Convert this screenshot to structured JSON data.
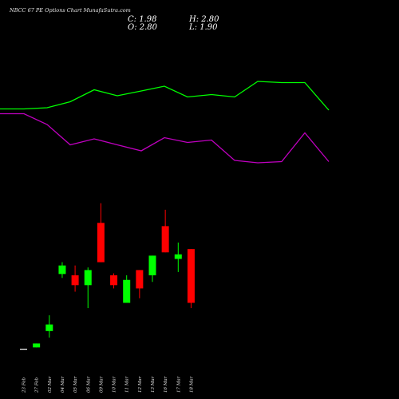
{
  "header": {
    "title": "NBCC 67 PE Options Chart MunafaSutra.com",
    "c_label": "C: 1.98",
    "o_label": "O: 2.80",
    "h_label": "H: 2.80",
    "l_label": "L: 1.90"
  },
  "colors": {
    "up": "#00ff00",
    "down": "#ff0000",
    "line_green": "#00ff00",
    "line_magenta": "#c000c0",
    "background": "#000000"
  },
  "chart_data": [
    {
      "type": "line",
      "title": "",
      "series": [
        {
          "color": "#00ff00",
          "values": [
            6.9,
            6.9,
            7.0,
            7.5,
            8.5,
            8.0,
            8.4,
            8.8,
            7.9,
            8.1,
            7.9,
            9.2,
            9.1,
            9.1,
            6.8
          ]
        },
        {
          "color": "#c000c0",
          "values": [
            6.5,
            6.5,
            5.6,
            3.9,
            4.4,
            3.9,
            3.4,
            4.5,
            4.1,
            4.3,
            2.6,
            2.4,
            2.5,
            4.9,
            2.5
          ]
        }
      ],
      "ylim": [
        0,
        12
      ]
    },
    {
      "type": "candlestick",
      "title": "",
      "categories": [
        "23 Feb",
        "27 Feb",
        "02 Mar",
        "04 Mar",
        "05 Mar",
        "06 Mar",
        "09 Mar",
        "10 Mar",
        "11 Mar",
        "12 Mar",
        "13 Mar",
        "16 Mar",
        "17 Mar",
        "18 Mar"
      ],
      "candles": [
        {
          "open": 1.28,
          "high": 1.28,
          "low": 1.28,
          "close": 1.28
        },
        {
          "open": 1.3,
          "high": 1.36,
          "low": 1.3,
          "close": 1.36
        },
        {
          "open": 1.55,
          "high": 1.79,
          "low": 1.45,
          "close": 1.65
        },
        {
          "open": 2.42,
          "high": 2.6,
          "low": 2.36,
          "close": 2.55
        },
        {
          "open": 2.4,
          "high": 2.55,
          "low": 2.15,
          "close": 2.25
        },
        {
          "open": 2.25,
          "high": 2.52,
          "low": 1.9,
          "close": 2.48
        },
        {
          "open": 3.2,
          "high": 3.5,
          "low": 2.6,
          "close": 2.6
        },
        {
          "open": 2.4,
          "high": 2.43,
          "low": 2.2,
          "close": 2.25
        },
        {
          "open": 1.98,
          "high": 2.4,
          "low": 1.98,
          "close": 2.33
        },
        {
          "open": 2.48,
          "high": 2.48,
          "low": 2.05,
          "close": 2.2
        },
        {
          "open": 2.4,
          "high": 2.7,
          "low": 2.3,
          "close": 2.7
        },
        {
          "open": 3.15,
          "high": 3.4,
          "low": 2.75,
          "close": 2.75
        },
        {
          "open": 2.65,
          "high": 2.9,
          "low": 2.45,
          "close": 2.72
        },
        {
          "open": 2.8,
          "high": 2.8,
          "low": 1.9,
          "close": 1.98
        }
      ],
      "ylim": [
        1.0,
        3.8
      ]
    }
  ]
}
